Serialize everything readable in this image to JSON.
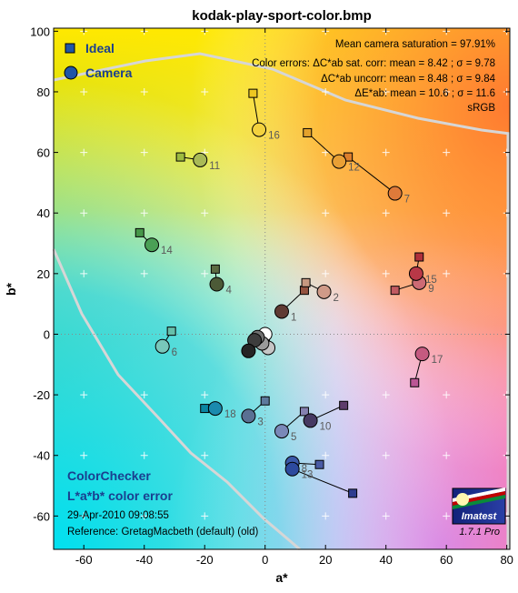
{
  "chart_data": {
    "type": "scatter",
    "title": "kodak-play-sport-color.bmp",
    "xlabel": "a*",
    "ylabel": "b*",
    "xlim": [
      -70,
      81
    ],
    "ylim": [
      -71,
      101
    ],
    "x_ticks": [
      -60,
      -40,
      -20,
      0,
      20,
      40,
      60,
      80
    ],
    "y_ticks": [
      -60,
      -40,
      -20,
      0,
      20,
      40,
      60,
      80,
      100
    ],
    "grid": "dotted crosshair at a*=0 and b*=0; '+' markers every 20 units",
    "legend": {
      "position": "top-left",
      "entries": [
        {
          "name": "Ideal",
          "marker": "square",
          "color": "#1f55a8"
        },
        {
          "name": "Camera",
          "marker": "circle",
          "color": "#1f55a8"
        }
      ]
    },
    "stats_lines": [
      "Mean camera saturation = 97.91%",
      "Color errors: ΔC*ab sat. corr:  mean = 8.42 ;  σ = 9.78",
      "ΔC*ab uncorr:  mean = 8.48 ;  σ = 9.84",
      "ΔE*ab:  mean = 10.6 ;  σ = 11.6",
      "sRGB"
    ],
    "footer_lines": [
      "ColorChecker",
      "L*a*b* color error",
      "29-Apr-2010 09:08:55",
      "Reference: GretagMacbeth (default) (old)"
    ],
    "logo_text": "Imatest",
    "version_text": "1.7.1  Pro",
    "patches": [
      {
        "id": 1,
        "ideal": [
          13,
          14.5
        ],
        "camera": [
          5.5,
          7.5
        ],
        "ideal_color": "#94523f",
        "camera_color": "#5f3a33",
        "show_label": true
      },
      {
        "id": 2,
        "ideal": [
          13.5,
          17
        ],
        "camera": [
          19.5,
          14
        ],
        "ideal_color": "#c69880",
        "camera_color": "#cf9a88",
        "show_label": true
      },
      {
        "id": 3,
        "ideal": [
          0,
          -22
        ],
        "camera": [
          -5.5,
          -27
        ],
        "ideal_color": "#5d7a9c",
        "camera_color": "#5a7093",
        "show_label": true
      },
      {
        "id": 4,
        "ideal": [
          -16.5,
          21.5
        ],
        "camera": [
          -16,
          16.5
        ],
        "ideal_color": "#5c6b42",
        "camera_color": "#4c5a37",
        "show_label": true
      },
      {
        "id": 5,
        "ideal": [
          13,
          -25.5
        ],
        "camera": [
          5.5,
          -32
        ],
        "ideal_color": "#8581b0",
        "camera_color": "#7a88b8",
        "show_label": true
      },
      {
        "id": 6,
        "ideal": [
          -31,
          1
        ],
        "camera": [
          -34,
          -4
        ],
        "ideal_color": "#66bfaa",
        "camera_color": "#78c8bb",
        "show_label": true
      },
      {
        "id": 7,
        "ideal": [
          27.5,
          58.5
        ],
        "camera": [
          43,
          46.5
        ],
        "ideal_color": "#dd7e2c",
        "camera_color": "#de7a3a",
        "show_label": true
      },
      {
        "id": 8,
        "ideal": [
          18,
          -43
        ],
        "camera": [
          9,
          -42.5
        ],
        "ideal_color": "#4a5ba5",
        "camera_color": "#3a58a8",
        "show_label": true
      },
      {
        "id": 9,
        "ideal": [
          43,
          14.5
        ],
        "camera": [
          51,
          17
        ],
        "ideal_color": "#c15a61",
        "camera_color": "#cd6a74",
        "show_label": true
      },
      {
        "id": 10,
        "ideal": [
          26,
          -23.5
        ],
        "camera": [
          15,
          -28.5
        ],
        "ideal_color": "#5d3c6b",
        "camera_color": "#463962",
        "show_label": true
      },
      {
        "id": 11,
        "ideal": [
          -28,
          58.5
        ],
        "camera": [
          -21.5,
          57.5
        ],
        "ideal_color": "#9dbb40",
        "camera_color": "#a9ba56",
        "show_label": true
      },
      {
        "id": 12,
        "ideal": [
          14,
          66.5
        ],
        "camera": [
          24.5,
          57
        ],
        "ideal_color": "#e4a22c",
        "camera_color": "#e9a035",
        "show_label": true
      },
      {
        "id": 13,
        "ideal": [
          29,
          -52.5
        ],
        "camera": [
          9,
          -44.5
        ],
        "ideal_color": "#2e3d8f",
        "camera_color": "#2d4a9e",
        "show_label": true
      },
      {
        "id": 14,
        "ideal": [
          -41.5,
          33.5
        ],
        "camera": [
          -37.5,
          29.5
        ],
        "ideal_color": "#469749",
        "camera_color": "#4aa056",
        "show_label": true
      },
      {
        "id": 15,
        "ideal": [
          51,
          25.5
        ],
        "camera": [
          50,
          20
        ],
        "ideal_color": "#b0303b",
        "camera_color": "#b93847",
        "show_label": true
      },
      {
        "id": 16,
        "ideal": [
          -4,
          79.5
        ],
        "camera": [
          -2,
          67.5
        ],
        "ideal_color": "#edc721",
        "camera_color": "#f3d23e",
        "show_label": true
      },
      {
        "id": 17,
        "ideal": [
          49.5,
          -16
        ],
        "camera": [
          52,
          -6.5
        ],
        "ideal_color": "#bb5695",
        "camera_color": "#c55a80",
        "show_label": true
      },
      {
        "id": 18,
        "ideal": [
          -20,
          -24.5
        ],
        "camera": [
          -16.5,
          -24.5
        ],
        "ideal_color": "#0a85a1",
        "camera_color": "#1a8aae",
        "show_label": true
      },
      {
        "id": 19,
        "ideal": [
          0,
          -0.5
        ],
        "camera": [
          0,
          0
        ],
        "ideal_color": "#f3f3f2",
        "camera_color": "#ffffff",
        "show_label": false
      },
      {
        "id": 20,
        "ideal": [
          0,
          -1
        ],
        "camera": [
          1,
          -4.5
        ],
        "ideal_color": "#c8c8c8",
        "camera_color": "#c6c6c6",
        "show_label": false
      },
      {
        "id": 21,
        "ideal": [
          0,
          -1
        ],
        "camera": [
          -1,
          -3
        ],
        "ideal_color": "#a0a0a0",
        "camera_color": "#9a9a9a",
        "show_label": false
      },
      {
        "id": 22,
        "ideal": [
          0,
          -1
        ],
        "camera": [
          -2.5,
          -1
        ],
        "ideal_color": "#7a7a79",
        "camera_color": "#707070",
        "show_label": false
      },
      {
        "id": 23,
        "ideal": [
          0,
          -1
        ],
        "camera": [
          -3.5,
          -2
        ],
        "ideal_color": "#555555",
        "camera_color": "#3d3d3d",
        "show_label": false
      },
      {
        "id": 24,
        "ideal": [
          0,
          -1
        ],
        "camera": [
          -5.5,
          -5.5
        ],
        "ideal_color": "#343434",
        "camera_color": "#252525",
        "show_label": false
      }
    ]
  }
}
